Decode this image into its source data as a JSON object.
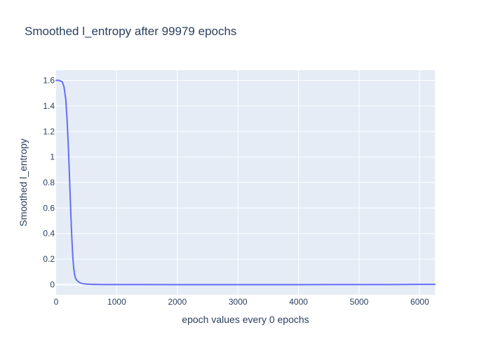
{
  "chart_data": {
    "type": "line",
    "title": "Smoothed l_entropy after 99979 epochs",
    "xlabel": "epoch values every 0 epochs",
    "ylabel": "Smoothed l_entropy",
    "xlim": [
      0,
      6250
    ],
    "ylim": [
      -0.08,
      1.68
    ],
    "x_ticks": [
      0,
      1000,
      2000,
      3000,
      4000,
      5000,
      6000
    ],
    "y_ticks": [
      0,
      0.2,
      0.4,
      0.6,
      0.8,
      1,
      1.2,
      1.4,
      1.6
    ],
    "x_tick_labels": [
      "0",
      "1000",
      "2000",
      "3000",
      "4000",
      "5000",
      "6000"
    ],
    "y_tick_labels": [
      "0",
      "0.2",
      "0.4",
      "0.6",
      "0.8",
      "1",
      "1.2",
      "1.4",
      "1.6"
    ],
    "grid": true,
    "colors": {
      "plot_background": "#e5ecf6",
      "grid": "#ffffff",
      "line": "#636efa",
      "text": "#2a3f5f"
    },
    "series": [
      {
        "x": [
          0,
          50,
          100,
          130,
          160,
          180,
          200,
          215,
          230,
          245,
          260,
          275,
          290,
          305,
          320,
          340,
          360,
          400,
          450,
          500,
          600,
          700,
          800,
          1000,
          1500,
          2000,
          3000,
          4000,
          4500,
          5000,
          5500,
          6000,
          6250
        ],
        "y": [
          1.6,
          1.6,
          1.59,
          1.55,
          1.45,
          1.3,
          1.1,
          0.92,
          0.72,
          0.52,
          0.36,
          0.22,
          0.13,
          0.08,
          0.05,
          0.035,
          0.025,
          0.013,
          0.007,
          0.004,
          0.002,
          0.001,
          0.0005,
          0.0004,
          0.0002,
          0.0001,
          0.0001,
          0.0001,
          0.0002,
          0.0004,
          0.0007,
          0.0015,
          0.002
        ]
      }
    ]
  }
}
